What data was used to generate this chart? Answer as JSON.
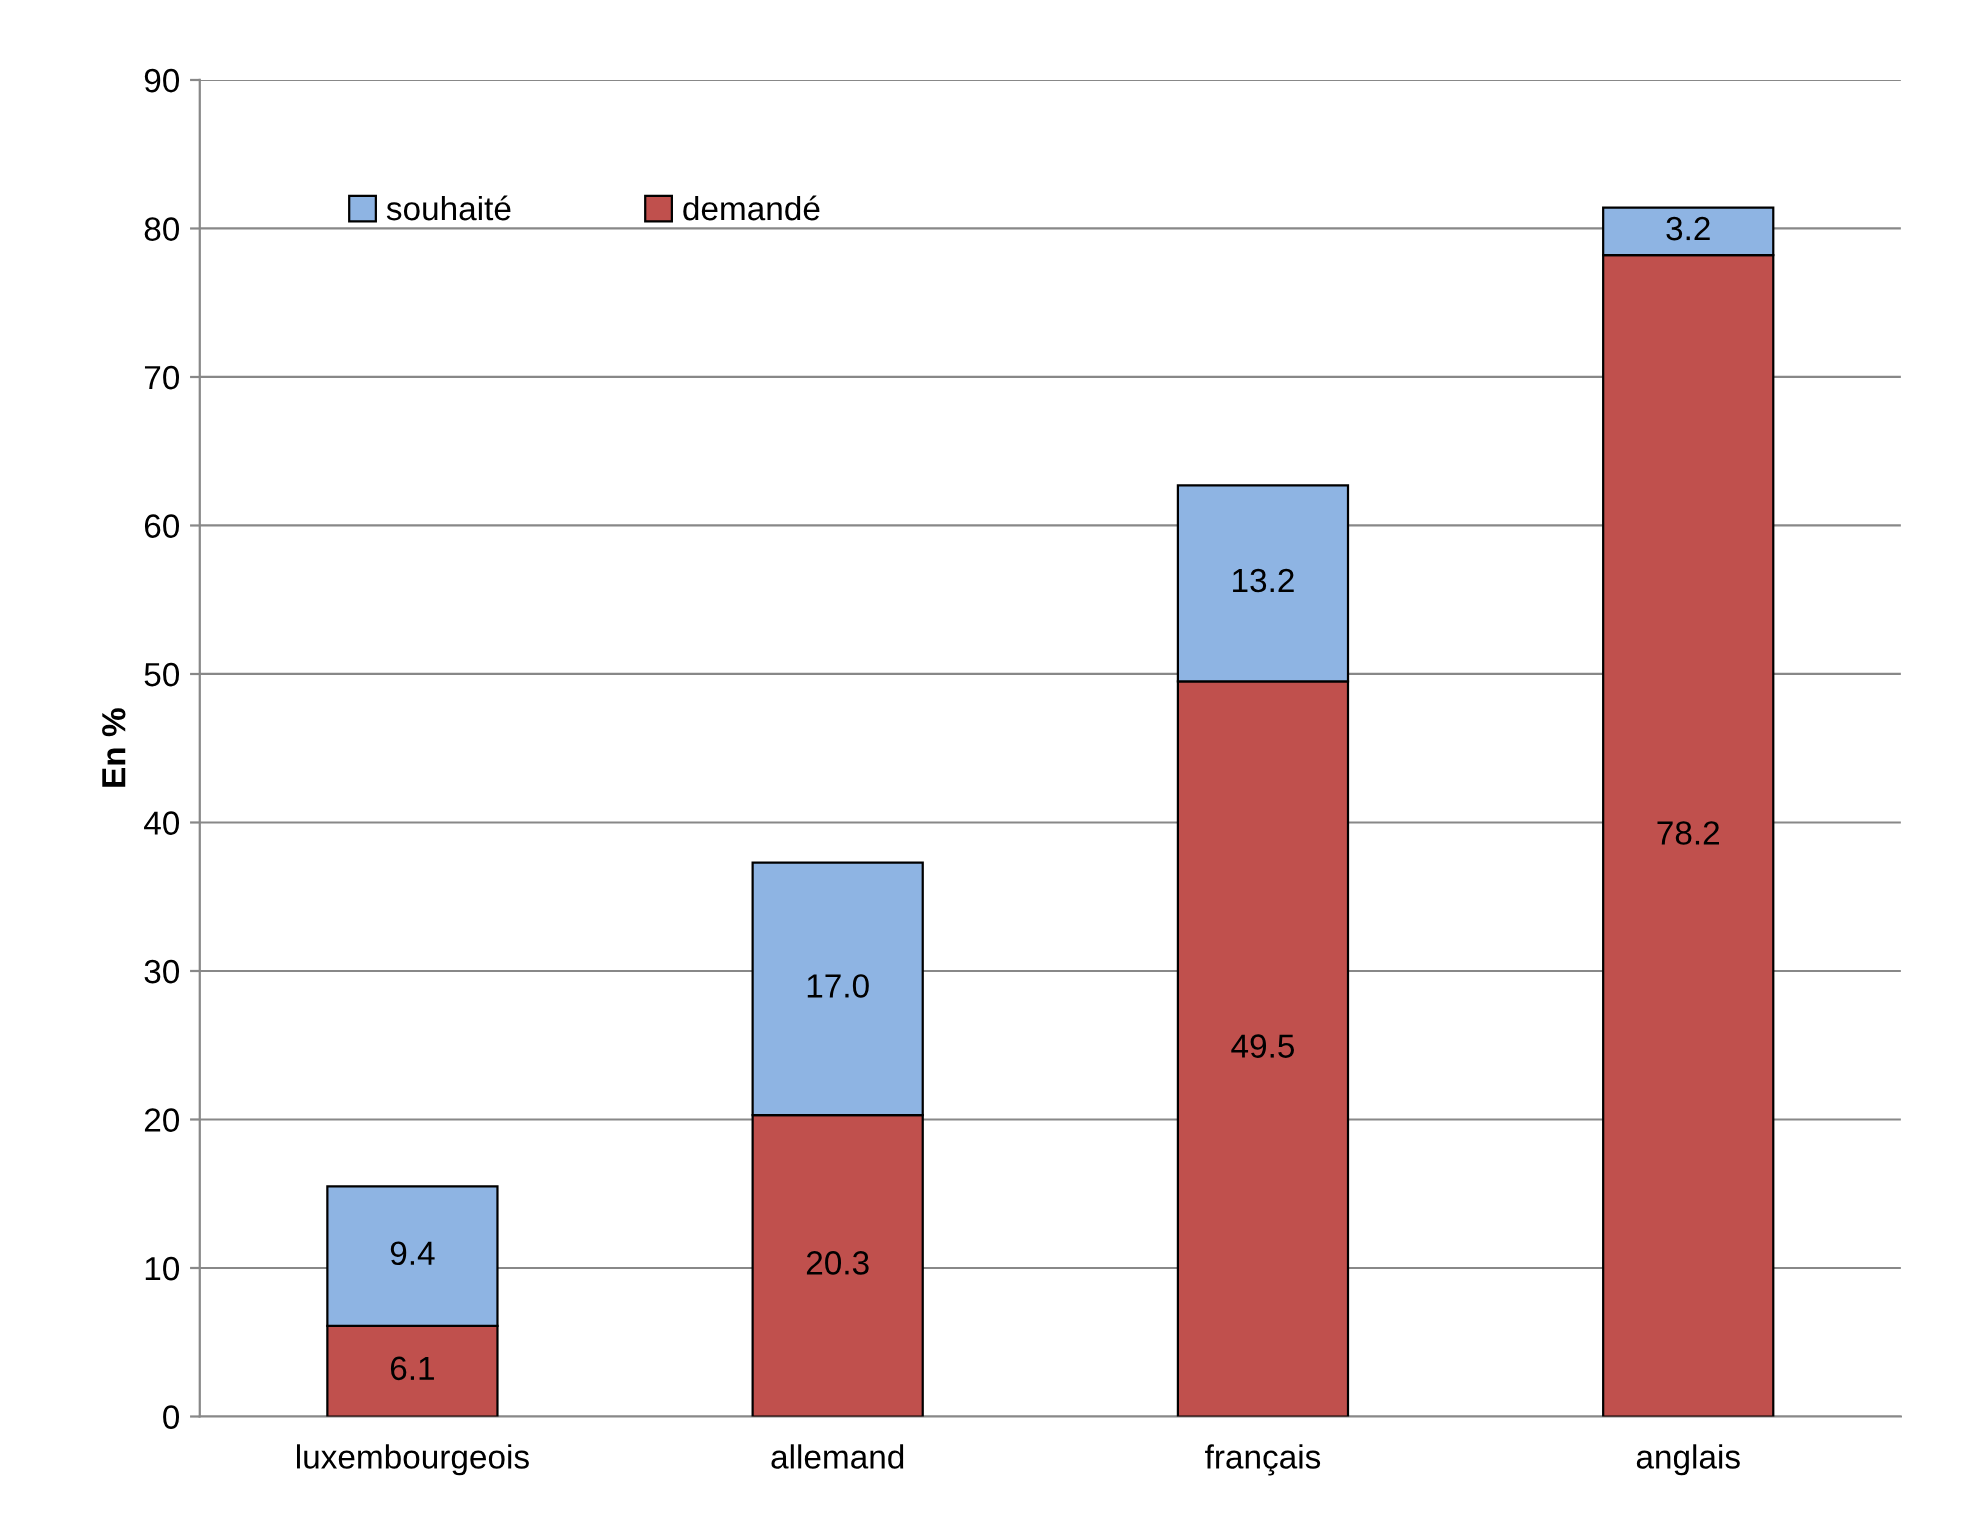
{
  "chart_data": {
    "type": "bar",
    "stacked": true,
    "ylabel": "En %",
    "categories": [
      "luxembourgeois",
      "allemand",
      "français",
      "anglais"
    ],
    "series": [
      {
        "name": "demandé",
        "color": "#c0504d",
        "values": [
          6.1,
          20.3,
          49.5,
          78.2
        ],
        "value_labels": [
          "6.1",
          "20.3",
          "49.5",
          "78.2"
        ]
      },
      {
        "name": "souhaité",
        "color": "#8eb4e3",
        "values": [
          9.4,
          17.0,
          13.2,
          3.2
        ],
        "value_labels": [
          "9.4",
          "17.0",
          "13.2",
          "3.2"
        ]
      }
    ],
    "ylim": [
      0,
      90
    ],
    "yticks": [
      0,
      10,
      20,
      30,
      40,
      50,
      60,
      70,
      80,
      90
    ],
    "grid": "y",
    "legend": "top left"
  }
}
